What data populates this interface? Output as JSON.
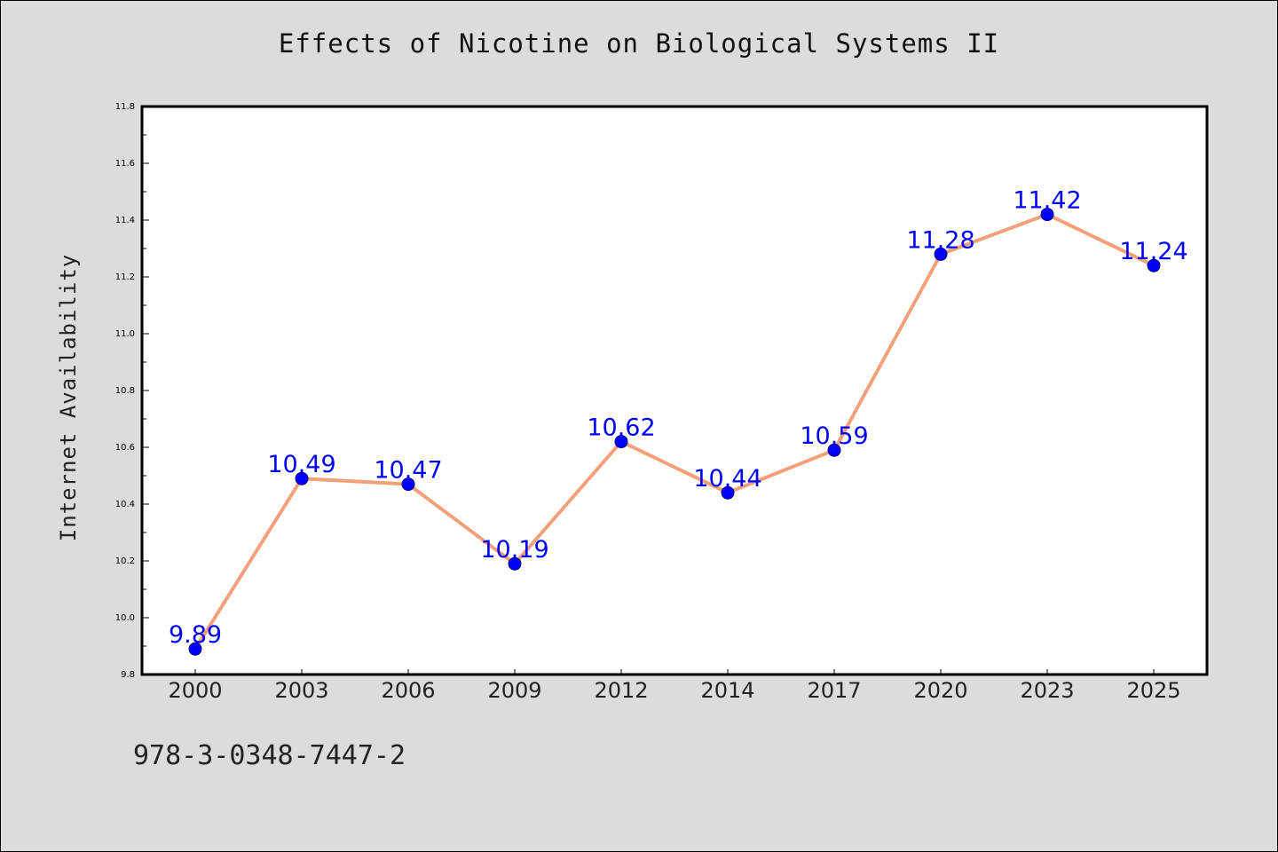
{
  "chart_data": {
    "type": "line",
    "title": "Effects of Nicotine on Biological Systems II",
    "xlabel": "",
    "ylabel": "Internet Availability",
    "categories": [
      "2000",
      "2003",
      "2006",
      "2009",
      "2012",
      "2014",
      "2017",
      "2020",
      "2023",
      "2025"
    ],
    "series": [
      {
        "values": [
          9.89,
          10.49,
          10.47,
          10.19,
          10.62,
          10.44,
          10.59,
          11.28,
          11.42,
          11.24
        ]
      }
    ],
    "data_labels": [
      "9.89",
      "10.49",
      "10.47",
      "10.19",
      "10.62",
      "10.44",
      "10.59",
      "11.28",
      "11.42",
      "11.24"
    ],
    "ylim": [
      9.8,
      11.8
    ],
    "yticks": [
      "9.8",
      "10.0",
      "10.2",
      "10.4",
      "10.6",
      "10.8",
      "11.0",
      "11.2",
      "11.4",
      "11.6",
      "11.8"
    ],
    "grid": false,
    "colors": {
      "line": "#f4a07a",
      "marker": "#0000ff",
      "label": "#0000ff",
      "plot_bg": "#ffffff",
      "page_bg": "#dcdcdc"
    }
  },
  "footer_code": "978-3-0348-7447-2"
}
